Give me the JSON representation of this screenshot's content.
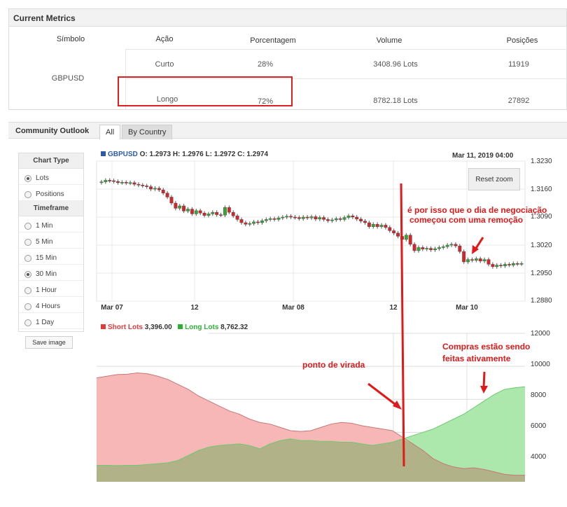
{
  "metrics": {
    "title": "Current Metrics",
    "columns": [
      "Símbolo",
      "Ação",
      "Porcentagem",
      "Volume",
      "Posições"
    ],
    "symbol": "GBPUSD",
    "rows": [
      {
        "action": "Curto",
        "percentage": "28%",
        "volume": "3408.96 Lots",
        "positions": "11919"
      },
      {
        "action": "Longo",
        "percentage": "72%",
        "volume": "8782.18 Lots",
        "positions": "27892"
      }
    ]
  },
  "outlook": {
    "title": "Community Outlook",
    "tabs": [
      "All",
      "By Country"
    ],
    "active_tab": "All"
  },
  "sidebar": {
    "chart_type_heading": "Chart Type",
    "chart_types": [
      "Lots",
      "Positions"
    ],
    "selected_chart_type": "Lots",
    "timeframe_heading": "Timeframe",
    "timeframes": [
      "1 Min",
      "5 Min",
      "15 Min",
      "30 Min",
      "1 Hour",
      "4 Hours",
      "1 Day"
    ],
    "selected_timeframe": "30 Min",
    "save_label": "Save image"
  },
  "price_chart": {
    "symbol": "GBPUSD",
    "ohlc_text": "O: 1.2973 H: 1.2976 L: 1.2972 C: 1.2974",
    "datetime": "Mar 11, 2019 04:00",
    "reset_zoom_label": "Reset zoom",
    "y_ticks": [
      "1.3230",
      "1.3160",
      "1.3090",
      "1.3020",
      "1.2950",
      "1.2880"
    ],
    "x_ticks": [
      "Mar 07",
      "12",
      "Mar 08",
      "12",
      "Mar 10"
    ]
  },
  "lots_chart": {
    "short_label": "Short Lots",
    "short_value": "3,396.00",
    "long_label": "Long Lots",
    "long_value": "8,762.32",
    "y_ticks": [
      "12000",
      "10000",
      "8000",
      "6000",
      "4000"
    ]
  },
  "annotations": {
    "remocao_line1": "é por isso que o dia de negociação",
    "remocao_line2": "começou com uma remoção",
    "virada": "ponto de virada",
    "compras_line1": "Compras estão sendo",
    "compras_line2": "feitas ativamente"
  },
  "colors": {
    "bull": "#35a831",
    "bear": "#d3262b",
    "short_fill": "#f7b3b3",
    "long_fill": "#a8e6a8",
    "overlap_fill": "#b1b287",
    "annotation": "#e01919"
  },
  "chart_data": [
    {
      "type": "candlestick",
      "title": "",
      "x_ticks": [
        "Mar 07",
        "12",
        "Mar 08",
        "12",
        "Mar 10"
      ],
      "ylim": [
        1.288,
        1.323
      ],
      "closes": [
        1.3178,
        1.3182,
        1.3181,
        1.3179,
        1.3176,
        1.3177,
        1.3175,
        1.3176,
        1.3172,
        1.317,
        1.3168,
        1.3166,
        1.316,
        1.3162,
        1.3158,
        1.315,
        1.314,
        1.3125,
        1.3112,
        1.3118,
        1.3105,
        1.311,
        1.3098,
        1.3106,
        1.31,
        1.3094,
        1.3098,
        1.3102,
        1.3096,
        1.3095,
        1.3114,
        1.3102,
        1.3093,
        1.3084,
        1.3076,
        1.3072,
        1.3074,
        1.3078,
        1.3076,
        1.3081,
        1.3084,
        1.3086,
        1.3084,
        1.3088,
        1.309,
        1.3092,
        1.309,
        1.3089,
        1.3086,
        1.309,
        1.3088,
        1.3091,
        1.3085,
        1.3089,
        1.3084,
        1.3081,
        1.3083,
        1.3086,
        1.3084,
        1.3089,
        1.3093,
        1.309,
        1.3085,
        1.308,
        1.3076,
        1.3066,
        1.3072,
        1.3066,
        1.307,
        1.3064,
        1.3056,
        1.305,
        1.3042,
        1.3034,
        1.3045,
        1.3022,
        1.3006,
        1.3014,
        1.301,
        1.3012,
        1.3008,
        1.3011,
        1.3014,
        1.3016,
        1.302,
        1.3022,
        1.3018,
        1.3004,
        1.2978,
        1.2984,
        1.2982,
        1.2986,
        1.298,
        1.2984,
        1.2972,
        1.2966,
        1.297,
        1.2968,
        1.2972,
        1.297,
        1.2974,
        1.2973,
        1.2974
      ]
    },
    {
      "type": "area",
      "title": "",
      "ylim": [
        3000,
        12000
      ],
      "series": [
        {
          "name": "Short Lots",
          "values": [
            9300,
            9400,
            9500,
            9520,
            9600,
            9550,
            9400,
            9200,
            8900,
            8600,
            8200,
            7900,
            7600,
            7300,
            7100,
            6800,
            6600,
            6500,
            6300,
            6100,
            6050,
            6100,
            6300,
            6500,
            6600,
            6550,
            6400,
            6300,
            6200,
            6100,
            5700,
            5300,
            4900,
            4400,
            4100,
            3900,
            3800,
            3850,
            3750,
            3600,
            3450,
            3400,
            3396
          ]
        },
        {
          "name": "Long Lots",
          "values": [
            4000,
            4000,
            3980,
            4000,
            4000,
            4050,
            4100,
            4150,
            4300,
            4600,
            4900,
            5100,
            5200,
            5250,
            5300,
            5200,
            5000,
            5300,
            5500,
            5600,
            5500,
            5500,
            5450,
            5450,
            5400,
            5400,
            5300,
            5200,
            5300,
            5400,
            5600,
            5800,
            6000,
            6200,
            6500,
            6800,
            7100,
            7500,
            7900,
            8300,
            8600,
            8700,
            8762
          ]
        }
      ]
    }
  ]
}
